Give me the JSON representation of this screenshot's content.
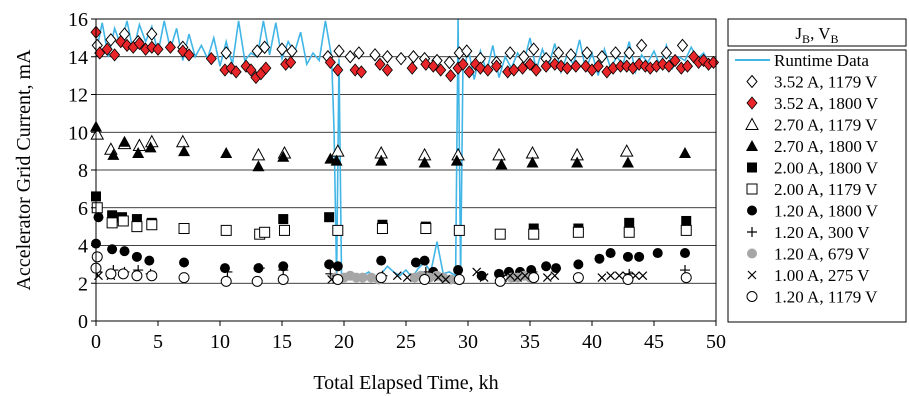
{
  "chart_data": {
    "type": "scatter",
    "title": "",
    "xlabel": "Total Elapsed Time, kh",
    "ylabel": "Accelerator Grid Current, mA",
    "xlim": [
      0,
      50
    ],
    "ylim": [
      0,
      16
    ],
    "xticks": [
      0,
      5,
      10,
      15,
      20,
      25,
      30,
      35,
      40,
      45,
      50
    ],
    "yticks": [
      0,
      2,
      4,
      6,
      8,
      10,
      12,
      14,
      16
    ],
    "grid": "horizontal",
    "legend_title": "J",
    "legend_title_sub": "B",
    "legend_title_sep": ", V",
    "legend_title_sub2": "B",
    "legend_position": "right",
    "runtime_color": "#41b6e6",
    "accent_red": "#e8262a",
    "grey": "#a6a6a6",
    "series": [
      {
        "name": "Runtime Data",
        "marker": "line",
        "x": [
          0.0,
          0.5,
          1.0,
          1.5,
          2.0,
          2.5,
          3.0,
          3.5,
          4.0,
          4.5,
          5.0,
          5.5,
          6.0,
          6.5,
          7.0,
          7.5,
          8.0,
          8.5,
          9.0,
          9.5,
          10.0,
          10.5,
          11.0,
          11.5,
          12.0,
          12.5,
          13.0,
          13.5,
          14.0,
          14.5,
          15.0,
          15.5,
          16.0,
          16.5,
          17.0,
          17.5,
          18.0,
          18.5,
          19.0,
          19.2,
          19.4,
          19.6,
          19.8,
          20.0,
          20.5,
          21.0,
          21.5,
          22.0,
          22.5,
          23.0,
          23.5,
          24.0,
          24.5,
          25.0,
          25.5,
          26.0,
          26.5,
          27.0,
          27.5,
          28.0,
          28.5,
          29.0,
          29.2,
          29.4,
          29.6,
          29.8,
          30.0,
          30.5,
          31.0,
          31.5,
          32.0,
          32.5,
          33.0,
          33.5,
          34.0,
          34.5,
          35.0,
          35.5,
          36.0,
          36.5,
          37.0,
          37.5,
          38.0,
          38.5,
          39.0,
          39.5,
          40.0,
          40.5,
          41.0,
          41.5,
          42.0,
          42.5,
          43.0,
          43.5,
          44.0,
          44.5,
          45.0,
          45.5,
          46.0,
          46.5,
          47.0,
          47.5,
          48.0,
          48.5,
          49.0,
          49.5,
          50.0
        ],
        "y": [
          14.2,
          15.8,
          14.0,
          15.5,
          14.6,
          15.9,
          14.3,
          15.7,
          14.8,
          15.6,
          14.2,
          15.9,
          14.4,
          15.5,
          13.8,
          15.2,
          14.0,
          14.6,
          13.9,
          15.0,
          13.5,
          14.8,
          13.6,
          15.9,
          13.8,
          14.2,
          14.0,
          15.9,
          14.1,
          15.8,
          13.9,
          14.8,
          14.2,
          15.3,
          13.6,
          14.2,
          13.8,
          15.9,
          14.0,
          10.0,
          2.3,
          13.9,
          2.5,
          2.2,
          2.6,
          2.3,
          2.4,
          2.6,
          2.2,
          2.5,
          2.9,
          2.6,
          2.4,
          2.7,
          2.3,
          2.8,
          3.1,
          2.6,
          4.2,
          2.5,
          2.6,
          2.4,
          16.0,
          2.3,
          13.8,
          13.6,
          14.5,
          12.8,
          14.3,
          13.2,
          14.6,
          12.9,
          14.0,
          13.4,
          14.2,
          13.7,
          15.0,
          13.3,
          14.4,
          13.5,
          14.7,
          13.2,
          14.1,
          13.6,
          14.9,
          13.3,
          14.2,
          13.0,
          14.4,
          13.4,
          14.0,
          13.6,
          14.8,
          13.2,
          14.1,
          13.7,
          14.3,
          13.5,
          14.6,
          13.4,
          14.0,
          13.8,
          14.5,
          13.9,
          14.2,
          13.6,
          13.8
        ]
      },
      {
        "name": "3.52 A, 1179 V",
        "marker": "diamond-open",
        "x": [
          0.1,
          1.2,
          2.3,
          3.4,
          4.5,
          7.0,
          10.5,
          13.0,
          13.6,
          15.0,
          15.8,
          18.7,
          19.6,
          20.5,
          21.2,
          22.5,
          23.5,
          24.6,
          25.6,
          26.5,
          27.5,
          28.5,
          29.3,
          29.9,
          31.0,
          32.3,
          33.4,
          34.5,
          35.3,
          36.3,
          37.3,
          38.3,
          39.6,
          40.8,
          41.9,
          43.0,
          44.0,
          46.0,
          47.3
        ],
        "y": [
          14.6,
          14.9,
          15.2,
          14.8,
          15.2,
          14.5,
          14.2,
          14.3,
          14.5,
          14.4,
          14.3,
          14.0,
          14.3,
          14.0,
          14.2,
          14.1,
          14.0,
          13.9,
          14.0,
          13.9,
          13.8,
          13.7,
          14.2,
          14.3,
          13.9,
          13.7,
          14.2,
          14.0,
          14.4,
          13.9,
          14.2,
          14.1,
          14.2,
          14.0,
          14.2,
          14.2,
          14.6,
          14.2,
          14.6
        ]
      },
      {
        "name": "3.52 A, 1800 V",
        "marker": "diamond-filled",
        "x": [
          0.0,
          0.3,
          0.9,
          1.5,
          2.0,
          2.5,
          3.0,
          3.5,
          4.0,
          4.5,
          5.0,
          6.0,
          7.0,
          7.5,
          9.3,
          10.4,
          10.9,
          11.3,
          12.1,
          12.5,
          12.9,
          13.3,
          13.7,
          15.3,
          15.7,
          18.9,
          19.5,
          20.9,
          21.4,
          22.9,
          23.5,
          25.5,
          26.6,
          27.2,
          27.8,
          28.6,
          29.2,
          29.6,
          30.1,
          30.6,
          31.0,
          31.6,
          32.3,
          33.2,
          33.7,
          34.4,
          35.0,
          35.5,
          36.3,
          37.0,
          37.5,
          38.0,
          38.7,
          39.5,
          40.0,
          40.5,
          41.2,
          41.7,
          42.3,
          42.8,
          43.3,
          43.8,
          44.3,
          44.7,
          45.2,
          45.7,
          46.2,
          46.7,
          47.2,
          47.7,
          48.2,
          48.6,
          49.0,
          49.4,
          49.8
        ],
        "y": [
          15.3,
          14.2,
          14.4,
          14.1,
          14.8,
          14.6,
          14.5,
          14.7,
          14.4,
          14.5,
          14.4,
          14.5,
          14.3,
          14.1,
          13.9,
          13.3,
          13.4,
          13.2,
          13.5,
          13.3,
          12.9,
          13.1,
          13.4,
          13.6,
          13.7,
          13.7,
          13.3,
          13.3,
          13.2,
          13.6,
          13.3,
          13.4,
          13.6,
          13.5,
          13.3,
          13.0,
          13.4,
          13.6,
          13.2,
          13.6,
          13.4,
          13.3,
          13.5,
          13.2,
          13.3,
          13.4,
          13.6,
          13.3,
          13.5,
          13.6,
          13.5,
          13.4,
          13.5,
          13.5,
          13.3,
          13.5,
          13.2,
          13.4,
          13.5,
          13.5,
          13.4,
          13.6,
          13.5,
          13.4,
          13.5,
          13.6,
          13.5,
          13.8,
          13.4,
          13.5,
          14.0,
          13.7,
          13.8,
          13.6,
          13.7
        ]
      },
      {
        "name": "2.70 A, 1179 V",
        "marker": "triangle-open",
        "x": [
          0.1,
          1.2,
          2.3,
          3.5,
          4.5,
          7.0,
          13.1,
          15.2,
          19.5,
          23.0,
          26.5,
          29.2,
          32.5,
          35.2,
          38.8,
          42.8
        ],
        "y": [
          9.9,
          9.1,
          9.4,
          9.3,
          9.5,
          9.5,
          8.8,
          8.9,
          9.0,
          8.9,
          8.8,
          8.8,
          8.8,
          8.9,
          8.8,
          9.0
        ]
      },
      {
        "name": "2.70 A, 1800 V",
        "marker": "triangle-filled",
        "x": [
          0.0,
          1.4,
          2.3,
          3.4,
          4.4,
          7.1,
          10.5,
          13.1,
          15.1,
          18.9,
          19.4,
          23.0,
          26.5,
          29.1,
          32.7,
          35.2,
          38.8,
          42.9,
          47.5
        ],
        "y": [
          10.3,
          8.8,
          9.5,
          8.9,
          9.2,
          9.0,
          8.9,
          8.2,
          8.7,
          8.6,
          8.5,
          8.5,
          8.4,
          8.5,
          8.3,
          8.4,
          8.4,
          8.4,
          8.9
        ]
      },
      {
        "name": "2.00 A, 1800 V",
        "marker": "square-filled",
        "x": [
          0.0,
          1.3,
          2.1,
          3.3,
          4.5,
          15.1,
          18.8,
          23.1,
          26.6,
          35.3,
          38.9,
          43.0,
          47.6
        ],
        "y": [
          6.6,
          5.6,
          5.5,
          5.4,
          5.2,
          5.4,
          5.5,
          5.1,
          5.0,
          4.9,
          4.9,
          5.2,
          5.3
        ]
      },
      {
        "name": "2.00 A, 1179 V",
        "marker": "square-open",
        "x": [
          0.1,
          1.3,
          2.2,
          3.3,
          4.5,
          7.1,
          10.5,
          13.2,
          13.6,
          15.2,
          19.5,
          23.1,
          26.6,
          29.3,
          32.6,
          35.3,
          38.9,
          43.0,
          47.6
        ],
        "y": [
          6.0,
          5.2,
          5.3,
          5.0,
          5.1,
          4.9,
          4.8,
          4.6,
          4.7,
          4.8,
          4.8,
          4.9,
          4.9,
          4.8,
          4.6,
          4.6,
          4.7,
          4.7,
          4.8
        ]
      },
      {
        "name": "1.20 A, 1800 V",
        "marker": "circle-filled",
        "x": [
          0.0,
          0.2,
          1.3,
          2.3,
          3.3,
          4.3,
          7.1,
          10.4,
          13.1,
          15.1,
          18.8,
          19.5,
          23.0,
          25.8,
          26.5,
          27.2,
          29.2,
          31.1,
          32.5,
          33.3,
          34.2,
          35.1,
          36.3,
          37.1,
          38.9,
          40.6,
          41.5,
          42.9,
          43.8,
          45.3,
          47.5
        ],
        "y": [
          4.1,
          5.5,
          3.8,
          3.7,
          3.4,
          3.2,
          3.1,
          2.8,
          2.8,
          2.9,
          3.0,
          2.9,
          3.2,
          3.1,
          3.2,
          2.6,
          2.7,
          2.4,
          2.5,
          2.6,
          2.6,
          2.7,
          2.9,
          2.8,
          3.0,
          3.3,
          3.6,
          3.4,
          3.4,
          3.6,
          3.6
        ]
      },
      {
        "name": "1.20 A, 300 V",
        "marker": "plus",
        "x": [
          0.1,
          1.4,
          2.3,
          3.4,
          4.4,
          10.6,
          13.2,
          15.1,
          18.9,
          23.1,
          26.6,
          29.2,
          32.6,
          35.2,
          38.9,
          43.0,
          47.5
        ],
        "y": [
          2.6,
          2.7,
          2.6,
          2.7,
          2.5,
          2.6,
          2.8,
          2.7,
          2.5,
          2.4,
          2.6,
          2.3,
          2.4,
          2.6,
          2.3,
          2.5,
          2.7
        ]
      },
      {
        "name": "1.20 A, 679 V",
        "marker": "circle-grey",
        "x": [
          19.3,
          20.0,
          20.5,
          21.0,
          21.5,
          22.2,
          22.8,
          25.7,
          26.2,
          26.9,
          27.5,
          28.0,
          28.6,
          33.5,
          34.0,
          34.5,
          35.0
        ],
        "y": [
          2.3,
          2.3,
          2.4,
          2.3,
          2.3,
          2.3,
          2.2,
          2.3,
          2.4,
          2.3,
          2.4,
          2.3,
          2.2,
          2.3,
          2.3,
          2.4,
          2.3
        ]
      },
      {
        "name": "1.00 A, 275 V",
        "marker": "cross",
        "x": [
          0.2,
          1.2,
          19.0,
          19.4,
          24.3,
          25.1,
          27.6,
          28.2,
          30.7,
          31.3,
          32.8,
          33.4,
          34.0,
          34.6,
          35.2,
          36.4,
          37.0,
          40.8,
          41.5,
          42.2,
          42.8,
          43.5,
          44.1
        ],
        "y": [
          2.4,
          2.4,
          2.2,
          2.2,
          2.4,
          2.3,
          2.3,
          2.2,
          2.6,
          2.3,
          2.3,
          2.4,
          2.3,
          2.4,
          2.4,
          2.3,
          2.4,
          2.3,
          2.4,
          2.4,
          2.4,
          2.4,
          2.4
        ]
      },
      {
        "name": "1.20 A, 1179 V",
        "marker": "circle-open",
        "x": [
          0.0,
          0.1,
          1.2,
          2.2,
          3.3,
          4.5,
          7.1,
          10.5,
          13.0,
          15.1,
          19.5,
          23.0,
          26.5,
          29.3,
          32.6,
          35.3,
          38.9,
          42.9,
          47.6
        ],
        "y": [
          2.8,
          3.4,
          2.5,
          2.5,
          2.4,
          2.4,
          2.3,
          2.1,
          2.1,
          2.2,
          2.2,
          2.3,
          2.2,
          2.2,
          2.1,
          2.3,
          2.3,
          2.2,
          2.3
        ]
      }
    ]
  }
}
